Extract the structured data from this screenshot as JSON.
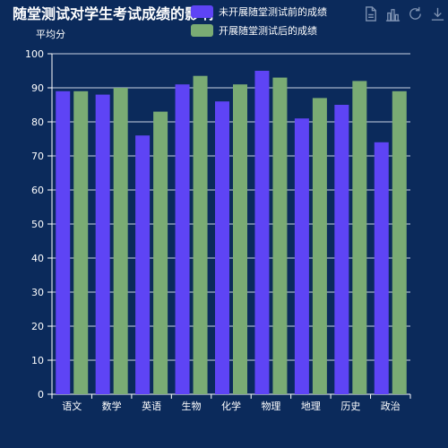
{
  "chart_data": {
    "type": "bar",
    "title": "随堂测试对学生考试成绩的影响",
    "ylabel": "平均分",
    "xlabel": "",
    "categories": [
      "语文",
      "数学",
      "英语",
      "生物",
      "化学",
      "物理",
      "地理",
      "历史",
      "政治"
    ],
    "series": [
      {
        "name": "未开展随堂测试前的成绩",
        "color": "#5e44f5",
        "values": [
          89,
          88,
          76,
          91,
          86,
          95,
          81,
          85,
          74
        ]
      },
      {
        "name": "开展随堂测试后的成绩",
        "color": "#7aab74",
        "values": [
          89,
          90,
          83,
          93.5,
          91,
          93,
          87,
          92,
          89
        ]
      }
    ],
    "ylim": [
      0,
      100
    ],
    "yticks": [
      0,
      10,
      20,
      30,
      40,
      50,
      60,
      70,
      80,
      90,
      100
    ],
    "grid": true,
    "legend_position": "top"
  },
  "toolbox": {
    "icons": [
      "save-image-icon",
      "bar-chart-icon",
      "restore-icon",
      "download-icon"
    ]
  },
  "colors": {
    "background": "#0b2a5b",
    "axis": "#ffffff",
    "icon": "#7f93b3"
  }
}
